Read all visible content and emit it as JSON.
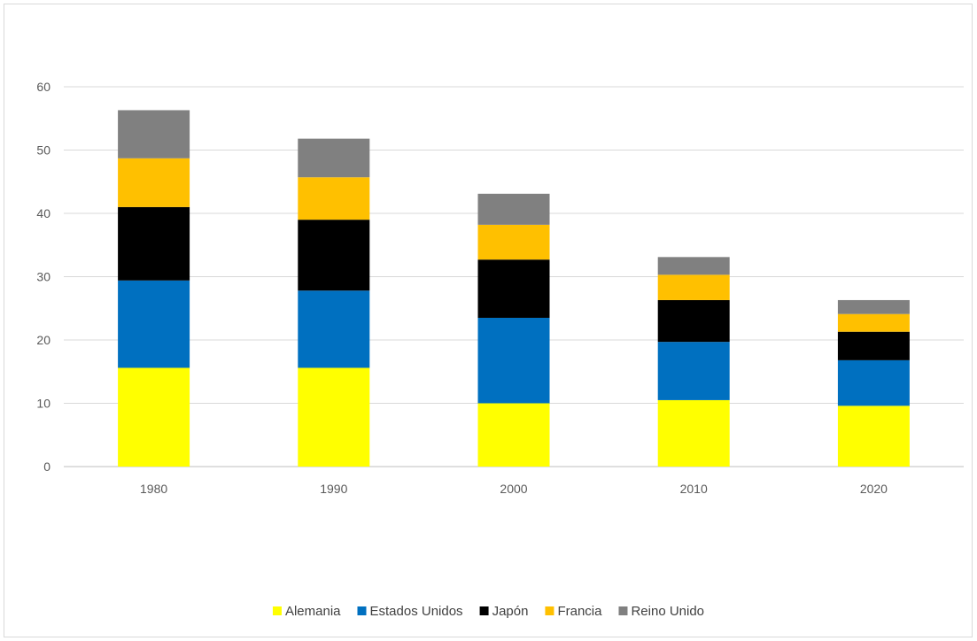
{
  "chart_data": {
    "type": "bar",
    "stacked": true,
    "categories": [
      "1980",
      "1990",
      "2000",
      "2010",
      "2020"
    ],
    "ylim": [
      0,
      60
    ],
    "yticks": [
      0,
      10,
      20,
      30,
      40,
      50,
      60
    ],
    "grid": true,
    "legend_position": "bottom",
    "series": [
      {
        "name": "Alemania",
        "color": "#ffff00",
        "values": [
          15.6,
          15.6,
          10.0,
          10.5,
          9.6
        ]
      },
      {
        "name": "Estados Unidos",
        "color": "#0070c0",
        "values": [
          13.8,
          12.2,
          13.5,
          9.2,
          7.2
        ]
      },
      {
        "name": "Japón",
        "color": "#000000",
        "values": [
          11.6,
          11.2,
          9.2,
          6.6,
          4.5
        ]
      },
      {
        "name": "Francia",
        "color": "#ffc000",
        "values": [
          7.7,
          6.7,
          5.5,
          4.0,
          2.8
        ]
      },
      {
        "name": "Reino Unido",
        "color": "#808080",
        "values": [
          7.6,
          6.1,
          4.9,
          2.8,
          2.2
        ]
      }
    ]
  }
}
